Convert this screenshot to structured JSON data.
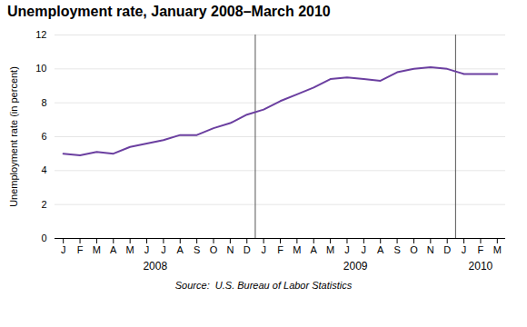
{
  "chart_data": {
    "type": "line",
    "title": "Unemployment rate, January 2008–March 2010",
    "ylabel": "Unemployment rate (in percent)",
    "source": "Source:  U.S. Bureau of Labor Statistics",
    "categories": [
      "J",
      "F",
      "M",
      "A",
      "M",
      "J",
      "J",
      "A",
      "S",
      "O",
      "N",
      "D",
      "J",
      "F",
      "M",
      "A",
      "M",
      "J",
      "J",
      "A",
      "S",
      "O",
      "N",
      "D",
      "J",
      "F",
      "M"
    ],
    "values": [
      5.0,
      4.9,
      5.1,
      5.0,
      5.4,
      5.6,
      5.8,
      6.1,
      6.1,
      6.5,
      6.8,
      7.3,
      7.6,
      8.1,
      8.5,
      8.9,
      9.4,
      9.5,
      9.4,
      9.3,
      9.8,
      10.0,
      10.1,
      10.0,
      9.7,
      9.7,
      9.7
    ],
    "color": "#6b3fa0",
    "ylim": [
      0,
      12
    ],
    "yticks": [
      0,
      2,
      4,
      6,
      8,
      10,
      12
    ],
    "grid": true,
    "annotations": [
      {
        "text": "2008",
        "x": 5.5
      },
      {
        "text": "2009",
        "x": 17.5
      },
      {
        "text": "2010",
        "x": 25.0
      }
    ],
    "vlines": [
      11.5,
      23.5
    ]
  }
}
